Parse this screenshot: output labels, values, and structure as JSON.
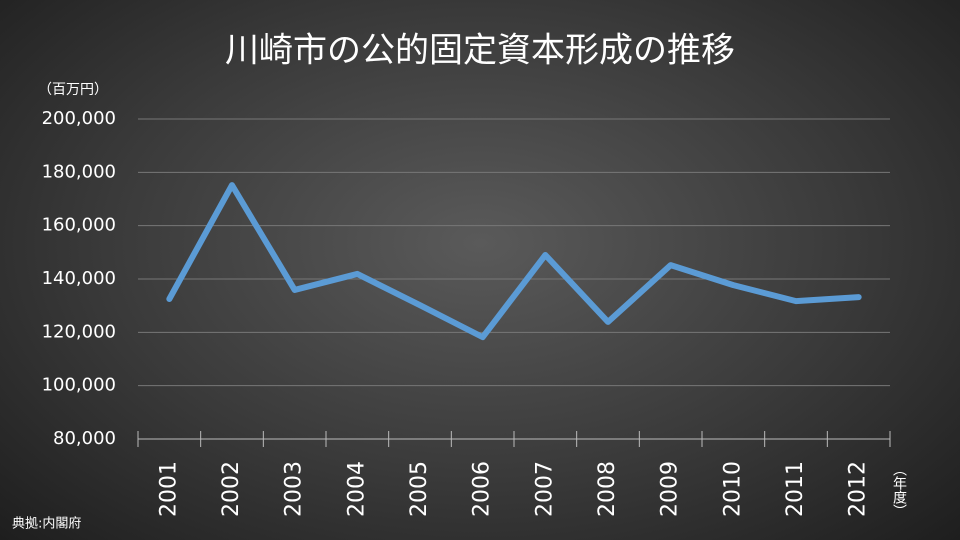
{
  "chart_data": {
    "type": "line",
    "title": "川崎市の公的固定資本形成の推移",
    "y_label": "（百万円）",
    "x_label": "（年度）",
    "source": "典拠:内閣府",
    "categories": [
      "2001",
      "2002",
      "2003",
      "2004",
      "2005",
      "2006",
      "2007",
      "2008",
      "2009",
      "2010",
      "2011",
      "2012"
    ],
    "series": [
      {
        "name": "公的固定資本形成",
        "color": "#5b9bd5",
        "values": [
          132500,
          175200,
          135900,
          141900,
          130200,
          118200,
          149000,
          123900,
          145200,
          137700,
          131700,
          133200
        ]
      }
    ],
    "ylim": [
      80000,
      200000
    ],
    "yticks": [
      {
        "value": 80000,
        "label": "80,000"
      },
      {
        "value": 100000,
        "label": "100,000"
      },
      {
        "value": 120000,
        "label": "120,000"
      },
      {
        "value": 140000,
        "label": "140,000"
      },
      {
        "value": 160000,
        "label": "160,000"
      },
      {
        "value": 180000,
        "label": "180,000"
      },
      {
        "value": 200000,
        "label": "200,000"
      }
    ],
    "grid": true
  }
}
